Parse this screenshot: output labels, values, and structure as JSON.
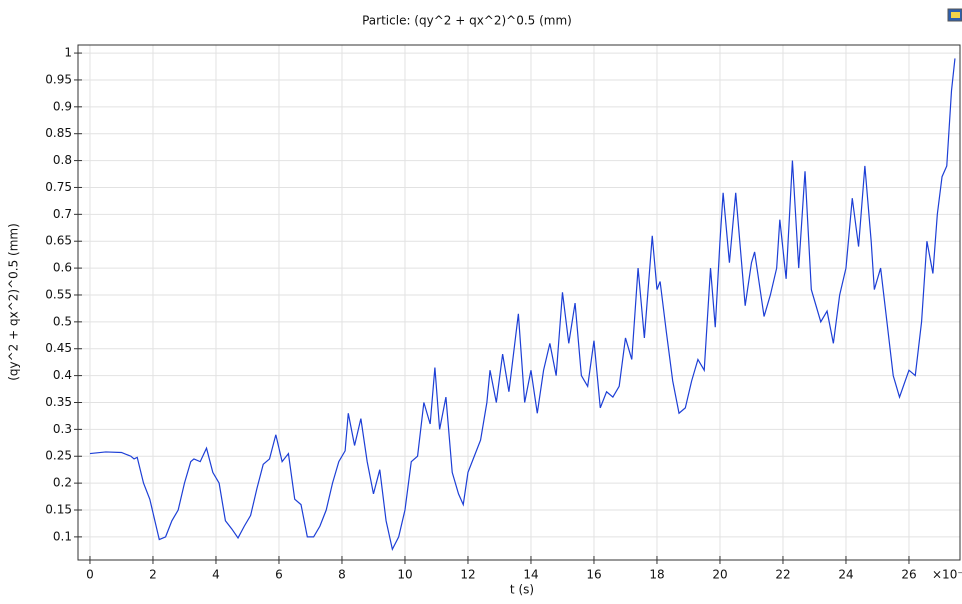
{
  "chart_data": {
    "type": "line",
    "title": "Particle: (qy^2 + qx^2)^0.5 (mm)",
    "x_label": "t (s)",
    "y_label": "(qy^2 + qx^2)^0.5 (mm)",
    "x_multiplier": "×10⁻⁷",
    "color": "#1d3fd6",
    "grid": true,
    "xlim": [
      -0.38,
      27.62
    ],
    "ylim": [
      0.057,
      1.015
    ],
    "xticks": [
      0,
      2,
      4,
      6,
      8,
      10,
      12,
      14,
      16,
      18,
      20,
      22,
      24,
      26
    ],
    "yticks": [
      0.1,
      0.15,
      0.2,
      0.25,
      0.3,
      0.35,
      0.4,
      0.45,
      0.5,
      0.55,
      0.6,
      0.65,
      0.7,
      0.75,
      0.8,
      0.85,
      0.9,
      0.95,
      1
    ],
    "x": [
      0,
      0.5,
      1,
      1.3,
      1.4,
      1.5,
      1.7,
      1.9,
      2.1,
      2.2,
      2.4,
      2.6,
      2.8,
      3,
      3.2,
      3.3,
      3.5,
      3.7,
      3.9,
      4.1,
      4.3,
      4.5,
      4.7,
      4.9,
      5.1,
      5.3,
      5.5,
      5.7,
      5.9,
      6.1,
      6.3,
      6.5,
      6.7,
      6.9,
      7.1,
      7.3,
      7.5,
      7.7,
      7.9,
      8.1,
      8.2,
      8.4,
      8.6,
      8.8,
      9,
      9.2,
      9.4,
      9.6,
      9.8,
      10,
      10.2,
      10.4,
      10.6,
      10.8,
      10.95,
      11.1,
      11.3,
      11.5,
      11.7,
      11.85,
      12,
      12.2,
      12.4,
      12.6,
      12.7,
      12.9,
      13.1,
      13.3,
      13.6,
      13.8,
      14,
      14.2,
      14.4,
      14.6,
      14.8,
      15,
      15.2,
      15.4,
      15.6,
      15.8,
      16,
      16.2,
      16.4,
      16.6,
      16.8,
      17,
      17.2,
      17.4,
      17.6,
      17.85,
      18,
      18.1,
      18.3,
      18.5,
      18.7,
      18.9,
      19.1,
      19.3,
      19.5,
      19.7,
      19.85,
      20,
      20.1,
      20.3,
      20.5,
      20.7,
      20.8,
      21,
      21.1,
      21.3,
      21.4,
      21.6,
      21.8,
      21.9,
      22.1,
      22.3,
      22.5,
      22.7,
      22.9,
      23.2,
      23.4,
      23.6,
      23.8,
      24,
      24.2,
      24.4,
      24.6,
      24.8,
      24.9,
      25.1,
      25.3,
      25.5,
      25.7,
      26,
      26.2,
      26.4,
      26.57,
      26.76,
      26.9,
      27.05,
      27.2,
      27.35,
      27.46
    ],
    "values": [
      0.255,
      0.258,
      0.257,
      0.25,
      0.245,
      0.248,
      0.2,
      0.17,
      0.12,
      0.095,
      0.1,
      0.13,
      0.15,
      0.2,
      0.24,
      0.245,
      0.24,
      0.265,
      0.22,
      0.2,
      0.13,
      0.115,
      0.098,
      0.12,
      0.14,
      0.19,
      0.235,
      0.245,
      0.29,
      0.24,
      0.255,
      0.17,
      0.16,
      0.1,
      0.1,
      0.12,
      0.15,
      0.2,
      0.24,
      0.26,
      0.33,
      0.27,
      0.32,
      0.24,
      0.18,
      0.225,
      0.13,
      0.077,
      0.1,
      0.15,
      0.24,
      0.25,
      0.35,
      0.31,
      0.415,
      0.3,
      0.36,
      0.22,
      0.18,
      0.16,
      0.22,
      0.25,
      0.28,
      0.35,
      0.41,
      0.35,
      0.44,
      0.37,
      0.515,
      0.35,
      0.41,
      0.33,
      0.41,
      0.46,
      0.4,
      0.555,
      0.46,
      0.535,
      0.4,
      0.38,
      0.465,
      0.34,
      0.37,
      0.36,
      0.38,
      0.47,
      0.43,
      0.6,
      0.47,
      0.66,
      0.56,
      0.575,
      0.48,
      0.39,
      0.33,
      0.34,
      0.39,
      0.43,
      0.41,
      0.6,
      0.49,
      0.65,
      0.74,
      0.61,
      0.74,
      0.6,
      0.53,
      0.61,
      0.63,
      0.55,
      0.51,
      0.55,
      0.6,
      0.69,
      0.58,
      0.8,
      0.6,
      0.78,
      0.56,
      0.5,
      0.52,
      0.46,
      0.55,
      0.6,
      0.73,
      0.64,
      0.79,
      0.65,
      0.56,
      0.6,
      0.5,
      0.4,
      0.36,
      0.41,
      0.4,
      0.5,
      0.65,
      0.59,
      0.7,
      0.77,
      0.79,
      0.93,
      0.99
    ]
  }
}
